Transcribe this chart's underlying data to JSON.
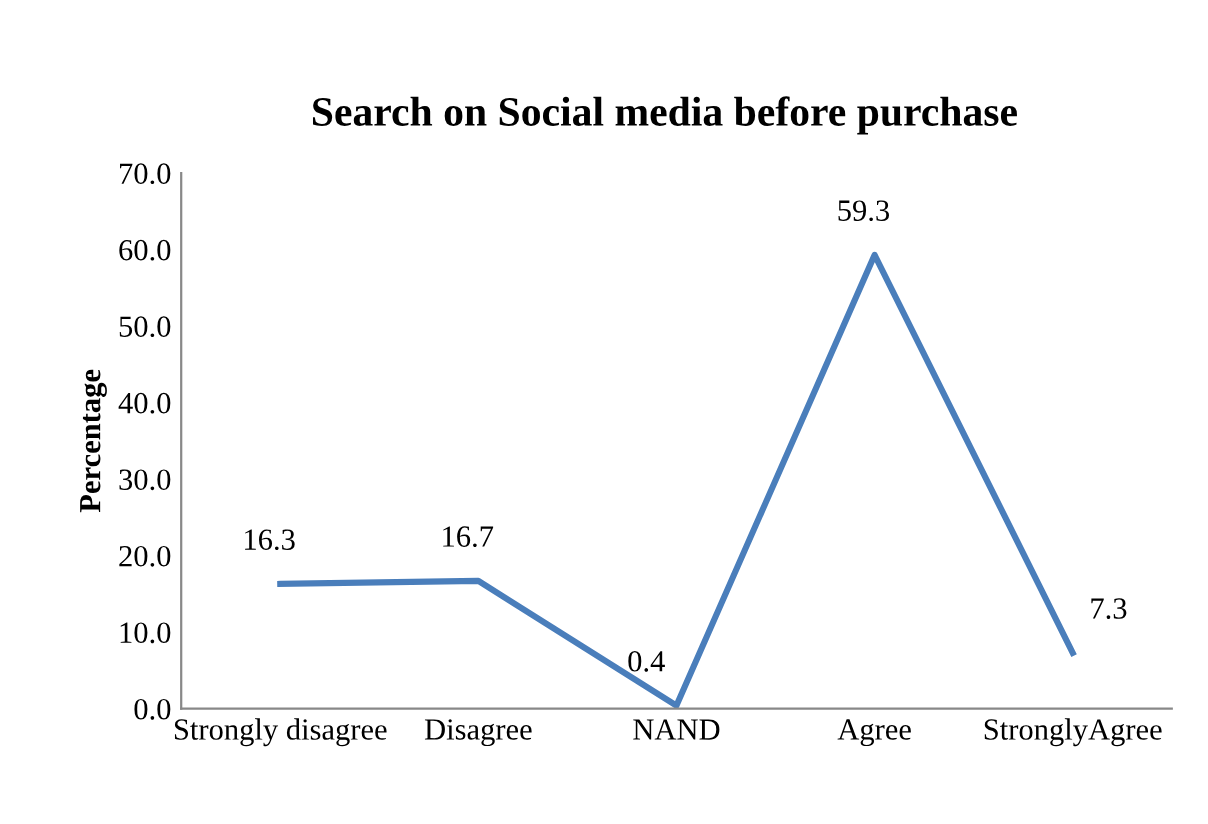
{
  "chart_data": {
    "type": "line",
    "title": "Search on Social media before purchase",
    "ylabel": "Percentage",
    "categories": [
      "Strongly disagree",
      "Disagree",
      "NAND",
      "Agree",
      "StronglyAgree"
    ],
    "series": [
      {
        "color": "#4a7ebb",
        "values": [
          16.3,
          16.7,
          0.4,
          59.3,
          7.3
        ]
      }
    ],
    "ylim": [
      0,
      70
    ],
    "yticks": [
      {
        "value": 0,
        "label": "0.0"
      },
      {
        "value": 10,
        "label": "10.0"
      },
      {
        "value": 20,
        "label": "20.0"
      },
      {
        "value": 30,
        "label": "30.0"
      },
      {
        "value": 40,
        "label": "40.0"
      },
      {
        "value": 50,
        "label": "50.0"
      },
      {
        "value": 60,
        "label": "60.0"
      },
      {
        "value": 70,
        "label": "70.0"
      }
    ],
    "grid": false,
    "data_labels": true,
    "marker": "none",
    "line_style": "solid"
  }
}
